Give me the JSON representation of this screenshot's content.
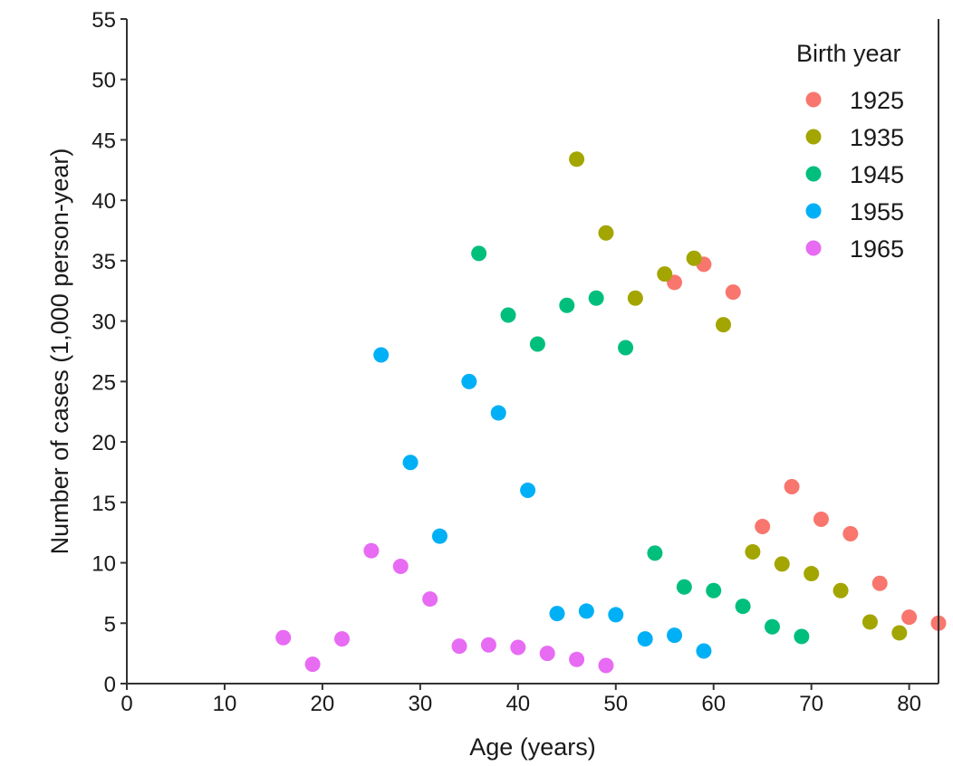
{
  "chart_data": {
    "type": "scatter",
    "title": "",
    "xlabel": "Age (years)",
    "ylabel": "Number of cases (1,000 person-year)",
    "xlim": [
      0,
      83
    ],
    "ylim": [
      0,
      55
    ],
    "xticks": [
      0,
      10,
      20,
      30,
      40,
      50,
      60,
      70,
      80
    ],
    "yticks": [
      0,
      5,
      10,
      15,
      20,
      25,
      30,
      35,
      40,
      45,
      50,
      55
    ],
    "grid": false,
    "legend": {
      "title": "Birth year",
      "placement": "top-right"
    },
    "series": [
      {
        "name": "1925",
        "color": "#F8766D",
        "points": [
          [
            56,
            33.2
          ],
          [
            59,
            34.7
          ],
          [
            62,
            32.4
          ],
          [
            65,
            13.0
          ],
          [
            68,
            16.3
          ],
          [
            71,
            13.6
          ],
          [
            74,
            12.4
          ],
          [
            77,
            8.3
          ],
          [
            80,
            5.5
          ],
          [
            83,
            5.0
          ]
        ]
      },
      {
        "name": "1935",
        "color": "#A3A500",
        "points": [
          [
            46,
            43.4
          ],
          [
            49,
            37.3
          ],
          [
            52,
            31.9
          ],
          [
            55,
            33.9
          ],
          [
            58,
            35.2
          ],
          [
            61,
            29.7
          ],
          [
            64,
            10.9
          ],
          [
            67,
            9.9
          ],
          [
            70,
            9.1
          ],
          [
            73,
            7.7
          ],
          [
            76,
            5.1
          ],
          [
            79,
            4.2
          ]
        ]
      },
      {
        "name": "1945",
        "color": "#00BF7D",
        "points": [
          [
            36,
            35.6
          ],
          [
            39,
            30.5
          ],
          [
            42,
            28.1
          ],
          [
            45,
            31.3
          ],
          [
            48,
            31.9
          ],
          [
            51,
            27.8
          ],
          [
            54,
            10.8
          ],
          [
            57,
            8.0
          ],
          [
            60,
            7.7
          ],
          [
            63,
            6.4
          ],
          [
            66,
            4.7
          ],
          [
            69,
            3.9
          ]
        ]
      },
      {
        "name": "1955",
        "color": "#00B0F6",
        "points": [
          [
            26,
            27.2
          ],
          [
            29,
            18.3
          ],
          [
            32,
            12.2
          ],
          [
            35,
            25.0
          ],
          [
            38,
            22.4
          ],
          [
            41,
            16.0
          ],
          [
            44,
            5.8
          ],
          [
            47,
            6.0
          ],
          [
            50,
            5.7
          ],
          [
            53,
            3.7
          ],
          [
            56,
            4.0
          ],
          [
            59,
            2.7
          ]
        ]
      },
      {
        "name": "1965",
        "color": "#E76BF3",
        "points": [
          [
            16,
            3.8
          ],
          [
            19,
            1.6
          ],
          [
            22,
            3.7
          ],
          [
            25,
            11.0
          ],
          [
            28,
            9.7
          ],
          [
            31,
            7.0
          ],
          [
            34,
            3.1
          ],
          [
            37,
            3.2
          ],
          [
            40,
            3.0
          ],
          [
            43,
            2.5
          ],
          [
            46,
            2.0
          ],
          [
            49,
            1.5
          ]
        ]
      }
    ]
  }
}
